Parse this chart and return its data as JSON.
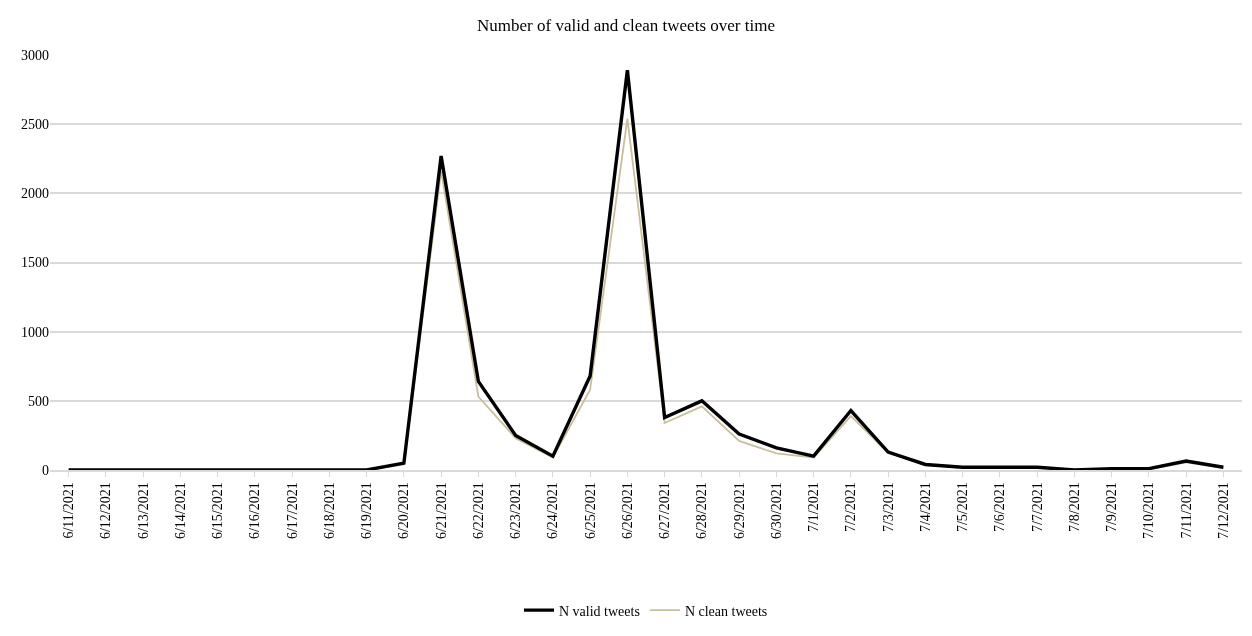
{
  "chart_data": {
    "type": "line",
    "title": "Number of valid and clean tweets over time",
    "categories": [
      "6/11/2021",
      "6/12/2021",
      "6/13/2021",
      "6/14/2021",
      "6/15/2021",
      "6/16/2021",
      "6/17/2021",
      "6/18/2021",
      "6/19/2021",
      "6/20/2021",
      "6/21/2021",
      "6/22/2021",
      "6/23/2021",
      "6/24/2021",
      "6/25/2021",
      "6/26/2021",
      "6/27/2021",
      "6/28/2021",
      "6/29/2021",
      "6/30/2021",
      "7/1/2021",
      "7/2/2021",
      "7/3/2021",
      "7/4/2021",
      "7/5/2021",
      "7/6/2021",
      "7/7/2021",
      "7/8/2021",
      "7/9/2021",
      "7/10/2021",
      "7/11/2021",
      "7/12/2021"
    ],
    "series": [
      {
        "name": "N valid tweets",
        "color": "#000000",
        "values": [
          0,
          0,
          0,
          0,
          0,
          0,
          0,
          0,
          0,
          50,
          2270,
          640,
          250,
          100,
          680,
          2890,
          380,
          500,
          260,
          160,
          100,
          430,
          130,
          40,
          20,
          20,
          20,
          0,
          10,
          10,
          65,
          20
        ]
      },
      {
        "name": "N clean tweets",
        "color": "#c9bf9c",
        "values": [
          0,
          0,
          0,
          0,
          0,
          0,
          0,
          0,
          0,
          40,
          2160,
          530,
          230,
          90,
          580,
          2540,
          340,
          460,
          210,
          120,
          90,
          390,
          125,
          35,
          15,
          15,
          15,
          0,
          5,
          5,
          55,
          15
        ]
      }
    ],
    "ylim": [
      0,
      3000
    ],
    "yticks": [
      0,
      500,
      1000,
      1500,
      2000,
      2500,
      3000
    ],
    "grid": "y",
    "legend": "bottom",
    "marker": "none",
    "line_style": "solid"
  }
}
